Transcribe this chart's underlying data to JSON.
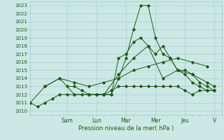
{
  "xlabel": "Pression niveau de la mer( hPa )",
  "ylim": [
    1009.5,
    1023.5
  ],
  "xlim": [
    0,
    13.0
  ],
  "bg_color": "#cce8e4",
  "grid_color": "#99cccc",
  "line_color": "#1a5c1a",
  "day_labels": [
    "Sam",
    "Lun",
    "Mar",
    "Mer",
    "Jeu",
    "V"
  ],
  "day_positions": [
    2.5,
    4.5,
    6.5,
    8.5,
    10.5,
    12.5
  ],
  "yticks": [
    1010,
    1011,
    1012,
    1013,
    1014,
    1015,
    1016,
    1017,
    1018,
    1019,
    1020,
    1021,
    1022,
    1023
  ],
  "line1_x": [
    0,
    0.5,
    1,
    1.5,
    2,
    2.5,
    3,
    3.5,
    4,
    4.5,
    5,
    5.5,
    6,
    6.5,
    7,
    7.5,
    8,
    8.5,
    9,
    9.5,
    10,
    10.5,
    11,
    11.5,
    12,
    12.5
  ],
  "line1_y": [
    1011,
    1010.5,
    1011,
    1011.5,
    1012,
    1012,
    1012,
    1012,
    1012,
    1012,
    1012,
    1012.5,
    1013,
    1013,
    1013,
    1013,
    1013,
    1013,
    1013,
    1013,
    1013,
    1012.5,
    1012,
    1012.5,
    1012.5,
    1012.5
  ],
  "line2_x": [
    0,
    1,
    2,
    3,
    4,
    5,
    6,
    7,
    8,
    9,
    10,
    11,
    12
  ],
  "line2_y": [
    1011,
    1013,
    1014,
    1013.5,
    1013,
    1013.5,
    1014,
    1015,
    1015.5,
    1016,
    1016.5,
    1016,
    1015.5
  ],
  "line3_x": [
    1,
    2,
    3,
    4,
    5,
    6,
    7,
    8,
    9,
    10,
    11,
    12,
    12.5
  ],
  "line3_y": [
    1013,
    1014,
    1012,
    1012,
    1012,
    1014.5,
    1016.5,
    1018,
    1014,
    1015,
    1014.5,
    1013.5,
    1013
  ],
  "line4_x": [
    2.5,
    3,
    3.5,
    4,
    4.5,
    5,
    5.5,
    6,
    6.5,
    7,
    7.5,
    8,
    8.5,
    9,
    9.5,
    10,
    10.5,
    11,
    11.5,
    12,
    12.5
  ],
  "line4_y": [
    1013,
    1013,
    1012.5,
    1012,
    1012,
    1012,
    1012,
    1014,
    1016.5,
    1020,
    1023,
    1023,
    1019,
    1017,
    1016.5,
    1015,
    1015,
    1014.5,
    1013.5,
    1013,
    1012.5
  ],
  "line5_x": [
    4.5,
    5,
    5.5,
    6,
    6.5,
    7,
    7.5,
    8,
    8.5,
    9,
    9.5,
    10,
    10.5,
    11,
    11.5,
    12,
    12.5
  ],
  "line5_y": [
    1012,
    1012,
    1012,
    1016.5,
    1017,
    1018.5,
    1019,
    1018,
    1017,
    1018,
    1016.5,
    1015,
    1014.5,
    1013.5,
    1013,
    1012.5,
    1012.5
  ]
}
